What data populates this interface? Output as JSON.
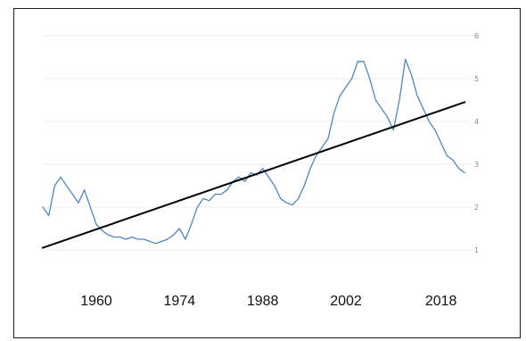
{
  "chart_data": {
    "type": "line",
    "title": "",
    "xlabel": "",
    "ylabel": "",
    "x_tick_labels": [
      "1960",
      "1974",
      "1988",
      "2002",
      "2018"
    ],
    "y_tick_labels": [
      "1",
      "2",
      "3",
      "4",
      "5",
      "6"
    ],
    "xlim": [
      1951,
      2023
    ],
    "ylim": [
      1,
      6
    ],
    "grid": true,
    "legend": "none",
    "series": [
      {
        "color": "#4f86bf",
        "points": [
          [
            1951.0,
            2.0
          ],
          [
            1952.0,
            1.8
          ],
          [
            1953.0,
            2.5
          ],
          [
            1954.0,
            2.7
          ],
          [
            1955.0,
            2.5
          ],
          [
            1956.0,
            2.3
          ],
          [
            1957.0,
            2.1
          ],
          [
            1958.0,
            2.4
          ],
          [
            1959.0,
            2.0
          ],
          [
            1960.0,
            1.6
          ],
          [
            1961.0,
            1.45
          ],
          [
            1962.0,
            1.35
          ],
          [
            1963.0,
            1.3
          ],
          [
            1964.0,
            1.3
          ],
          [
            1965.0,
            1.25
          ],
          [
            1966.0,
            1.3
          ],
          [
            1967.0,
            1.25
          ],
          [
            1968.0,
            1.25
          ],
          [
            1969.0,
            1.2
          ],
          [
            1970.0,
            1.15
          ],
          [
            1971.0,
            1.2
          ],
          [
            1972.0,
            1.25
          ],
          [
            1973.0,
            1.35
          ],
          [
            1974.0,
            1.5
          ],
          [
            1975.0,
            1.25
          ],
          [
            1976.0,
            1.6
          ],
          [
            1977.0,
            2.0
          ],
          [
            1978.0,
            2.2
          ],
          [
            1979.0,
            2.15
          ],
          [
            1980.0,
            2.3
          ],
          [
            1981.0,
            2.3
          ],
          [
            1982.0,
            2.4
          ],
          [
            1983.0,
            2.6
          ],
          [
            1984.0,
            2.7
          ],
          [
            1985.0,
            2.6
          ],
          [
            1986.0,
            2.8
          ],
          [
            1987.0,
            2.75
          ],
          [
            1988.0,
            2.9
          ],
          [
            1989.0,
            2.7
          ],
          [
            1990.0,
            2.5
          ],
          [
            1991.0,
            2.2
          ],
          [
            1992.0,
            2.1
          ],
          [
            1993.0,
            2.05
          ],
          [
            1994.0,
            2.2
          ],
          [
            1995.0,
            2.5
          ],
          [
            1996.0,
            2.9
          ],
          [
            1997.0,
            3.2
          ],
          [
            1998.0,
            3.4
          ],
          [
            1999.0,
            3.6
          ],
          [
            2000.0,
            4.2
          ],
          [
            2001.0,
            4.6
          ],
          [
            2002.0,
            4.8
          ],
          [
            2003.0,
            5.0
          ],
          [
            2004.0,
            5.4
          ],
          [
            2005.0,
            5.4
          ],
          [
            2006.0,
            5.0
          ],
          [
            2007.0,
            4.5
          ],
          [
            2008.0,
            4.3
          ],
          [
            2009.0,
            4.1
          ],
          [
            2010.0,
            3.8
          ],
          [
            2011.0,
            4.5
          ],
          [
            2012.0,
            5.45
          ],
          [
            2013.0,
            5.1
          ],
          [
            2014.0,
            4.6
          ],
          [
            2015.0,
            4.3
          ],
          [
            2016.0,
            4.0
          ],
          [
            2017.0,
            3.8
          ],
          [
            2018.0,
            3.5
          ],
          [
            2019.0,
            3.2
          ],
          [
            2020.0,
            3.1
          ],
          [
            2021.0,
            2.9
          ],
          [
            2022.0,
            2.8
          ]
        ]
      },
      {
        "color": "#000000",
        "points": [
          [
            1951.0,
            1.05
          ],
          [
            2022.0,
            4.45
          ]
        ]
      }
    ]
  }
}
